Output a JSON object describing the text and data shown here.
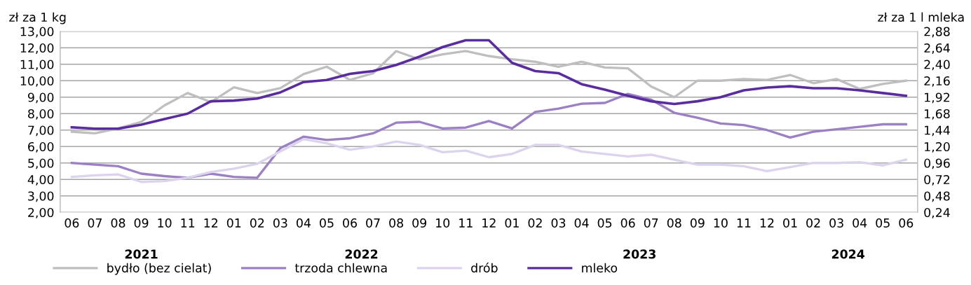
{
  "chart_data": {
    "type": "line",
    "ylabel": "zł za 1 kg",
    "y2label": "zł za 1 l mleka",
    "categories": [
      "06",
      "07",
      "08",
      "09",
      "10",
      "11",
      "12",
      "01",
      "02",
      "03",
      "04",
      "05",
      "06",
      "07",
      "08",
      "09",
      "10",
      "11",
      "12",
      "01",
      "02",
      "03",
      "04",
      "05",
      "06",
      "07",
      "08",
      "09",
      "10",
      "11",
      "12",
      "01",
      "02",
      "03",
      "04",
      "05",
      "06"
    ],
    "annotations": [
      "2021",
      "2022",
      "2023",
      "2024"
    ],
    "series": [
      {
        "name": "bydło (bez cielat)",
        "color": "#bfbfbf",
        "values": [
          6.9,
          6.8,
          7.1,
          7.5,
          8.5,
          9.25,
          8.7,
          9.6,
          9.25,
          9.55,
          10.4,
          10.85,
          10.05,
          10.45,
          11.8,
          11.3,
          11.6,
          11.8,
          11.5,
          11.3,
          11.15,
          10.85,
          11.15,
          10.8,
          10.75,
          9.65,
          9.0,
          10.0,
          10.0,
          10.1,
          10.05,
          10.35,
          9.85,
          10.1,
          9.5,
          9.8,
          10.0
        ]
      },
      {
        "name": "trzoda chlewna",
        "color": "#9b80c4",
        "values": [
          5.0,
          4.9,
          4.8,
          4.35,
          4.2,
          4.1,
          4.35,
          4.15,
          4.1,
          5.9,
          6.6,
          6.4,
          6.5,
          6.8,
          7.45,
          7.5,
          7.1,
          7.15,
          7.55,
          7.1,
          8.1,
          8.3,
          8.6,
          8.65,
          9.2,
          8.85,
          8.05,
          7.75,
          7.4,
          7.3,
          7.0,
          6.55,
          6.9,
          7.05,
          7.2,
          7.35,
          7.35
        ]
      },
      {
        "name": "drób",
        "color": "#dcd3ec",
        "values": [
          4.15,
          4.25,
          4.3,
          3.85,
          3.9,
          4.1,
          4.45,
          4.65,
          4.95,
          5.7,
          6.45,
          6.2,
          5.8,
          6.0,
          6.3,
          6.1,
          5.65,
          5.75,
          5.35,
          5.55,
          6.1,
          6.1,
          5.7,
          5.55,
          5.4,
          5.5,
          5.2,
          4.9,
          4.9,
          4.8,
          4.5,
          4.75,
          5.0,
          5.0,
          5.05,
          4.85,
          5.2
        ]
      },
      {
        "name": "mleko",
        "color": "#5a2d9f",
        "axis": "y2",
        "values": [
          1.48,
          1.46,
          1.46,
          1.52,
          1.6,
          1.68,
          1.86,
          1.87,
          1.9,
          1.99,
          2.14,
          2.17,
          2.26,
          2.3,
          2.39,
          2.51,
          2.65,
          2.75,
          2.75,
          2.42,
          2.3,
          2.27,
          2.11,
          2.03,
          1.94,
          1.86,
          1.82,
          1.86,
          1.92,
          2.02,
          2.06,
          2.08,
          2.05,
          2.05,
          2.02,
          1.98,
          1.94
        ]
      }
    ],
    "ylim": [
      2,
      13
    ],
    "yticks": [
      {
        "value": 2,
        "label": "2,00"
      },
      {
        "value": 3,
        "label": "3,00"
      },
      {
        "value": 4,
        "label": "4,00"
      },
      {
        "value": 5,
        "label": "5,00"
      },
      {
        "value": 6,
        "label": "6,00"
      },
      {
        "value": 7,
        "label": "7,00"
      },
      {
        "value": 8,
        "label": "8,00"
      },
      {
        "value": 9,
        "label": "9,00"
      },
      {
        "value": 10,
        "label": "10,00"
      },
      {
        "value": 11,
        "label": "11,00"
      },
      {
        "value": 12,
        "label": "12,00"
      },
      {
        "value": 13,
        "label": "13,00"
      }
    ],
    "y2lim": [
      0.24,
      2.88
    ],
    "y2ticks": [
      {
        "value": 0.24,
        "label": "0,24"
      },
      {
        "value": 0.48,
        "label": "0,48"
      },
      {
        "value": 0.72,
        "label": "0,72"
      },
      {
        "value": 0.96,
        "label": "0,96"
      },
      {
        "value": 1.2,
        "label": "1,20"
      },
      {
        "value": 1.44,
        "label": "1,44"
      },
      {
        "value": 1.68,
        "label": "1,68"
      },
      {
        "value": 1.92,
        "label": "1,92"
      },
      {
        "value": 2.16,
        "label": "2,16"
      },
      {
        "value": 2.4,
        "label": "2,40"
      },
      {
        "value": 2.64,
        "label": "2,64"
      },
      {
        "value": 2.88,
        "label": "2,88"
      }
    ],
    "grid": "y",
    "legend": "bottom left",
    "marker": "none",
    "line_style": "solid"
  }
}
